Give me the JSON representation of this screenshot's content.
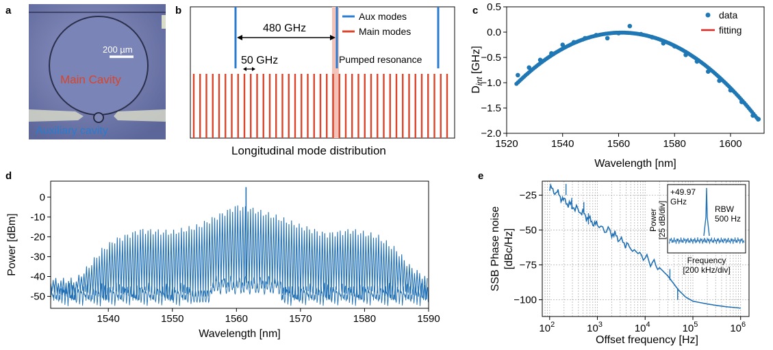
{
  "panels": {
    "a": {
      "label": "a",
      "scale_bar": "200 µm",
      "main_cavity": "Main Cavity",
      "aux_cavity": "Auxiliary cavity"
    },
    "b": {
      "label": "b",
      "legend": [
        "Aux modes",
        "Main modes"
      ],
      "spacing_large": "480 GHz",
      "spacing_small": "50 GHz",
      "pumped": "Pumped resonance",
      "caption": "Longitudinal mode distribution",
      "colors": {
        "aux": "#2a7bd0",
        "main": "#d9442b",
        "pump": "#f4c2b6"
      }
    },
    "c": {
      "label": "c"
    },
    "d": {
      "label": "d"
    },
    "e": {
      "label": "e",
      "inset": {
        "freq_label_1": "+49.97",
        "freq_label_2": "GHz",
        "ylabel_1": "Power",
        "ylabel_2": "[25 dB/div]",
        "rbw_1": "RBW",
        "rbw_2": "500 Hz",
        "xlabel_1": "Frequency",
        "xlabel_2": "[200 kHz/div]"
      }
    }
  },
  "chart_data": [
    {
      "id": "c",
      "type": "scatter",
      "xlabel": "Wavelength [nm]",
      "ylabel": "D_int [GHz]",
      "ylabel_main": "D",
      "ylabel_sub": "int",
      "ylabel_unit": " [GHz]",
      "xlim": [
        1520,
        1612
      ],
      "ylim": [
        -2.0,
        0.5
      ],
      "xticks": [
        1520,
        1540,
        1560,
        1580,
        1600
      ],
      "yticks": [
        0.5,
        0.0,
        -0.5,
        -1.0,
        -1.5,
        -2.0
      ],
      "ytick_labels": [
        "0.5",
        "0.0",
        "−0.5",
        "−1.0",
        "−1.5",
        "−2.0"
      ],
      "legend": [
        "data",
        "fitting"
      ],
      "series": [
        {
          "name": "data",
          "color": "#1f77b4",
          "x": [
            1524,
            1528,
            1532,
            1536,
            1540,
            1544,
            1548,
            1552,
            1556,
            1560,
            1564,
            1568,
            1572,
            1576,
            1580,
            1584,
            1588,
            1592,
            1596,
            1600,
            1604,
            1608,
            1610
          ],
          "y": [
            -0.85,
            -0.7,
            -0.55,
            -0.42,
            -0.25,
            -0.2,
            -0.12,
            -0.06,
            -0.12,
            -0.02,
            0.12,
            -0.04,
            -0.1,
            -0.22,
            -0.28,
            -0.45,
            -0.58,
            -0.78,
            -0.96,
            -1.15,
            -1.38,
            -1.65,
            -1.72
          ]
        },
        {
          "name": "fitting",
          "color": "#e8231b",
          "vertex_x": 1561,
          "vertex_y": -0.01,
          "curvature": -0.00072
        }
      ]
    },
    {
      "id": "d",
      "type": "line",
      "xlabel": "Wavelength [nm]",
      "ylabel": "Power [dBm]",
      "xlim": [
        1531,
        1590
      ],
      "ylim": [
        -56,
        8
      ],
      "xticks": [
        1540,
        1550,
        1560,
        1570,
        1580,
        1590
      ],
      "yticks": [
        0,
        -10,
        -20,
        -30,
        -40,
        -50
      ],
      "series": [
        {
          "name": "spectrum",
          "color": "#1f6fb4",
          "peak_x": 1561.5,
          "peak_y": 5,
          "line_spacing_nm": 0.4,
          "envelope_x": [
            1531,
            1535,
            1537,
            1539,
            1541,
            1545,
            1550,
            1554,
            1557,
            1560,
            1562,
            1566,
            1570,
            1574,
            1578,
            1582,
            1585,
            1587,
            1590
          ],
          "envelope_y": [
            -42,
            -42,
            -35,
            -27,
            -22,
            -17,
            -18,
            -15,
            -10,
            -5,
            -6,
            -10,
            -15,
            -19,
            -17,
            -20,
            -27,
            -35,
            -42
          ]
        }
      ]
    },
    {
      "id": "e",
      "type": "line",
      "xlabel": "Offset frequency [Hz]",
      "ylabel": "SSB Phase noise [dBc/Hz]",
      "ylabel_1": "SSB Phase noise",
      "ylabel_2": "[dBc/Hz]",
      "xscale": "log",
      "xlim": [
        70,
        1500000
      ],
      "ylim": [
        -112,
        -15
      ],
      "xticks": [
        100,
        1000,
        10000,
        100000,
        1000000
      ],
      "xtick_labels": [
        "10^2",
        "10^3",
        "10^4",
        "10^5",
        "10^6"
      ],
      "yticks": [
        -25,
        -50,
        -75,
        -100
      ],
      "series": [
        {
          "name": "phase noise",
          "color": "#1f6fb4",
          "x": [
            100,
            150,
            200,
            300,
            500,
            700,
            1000,
            2000,
            3000,
            5000,
            10000,
            20000,
            30000,
            50000,
            70000,
            100000,
            200000,
            300000,
            500000,
            1000000
          ],
          "y": [
            -20,
            -24,
            -29,
            -33,
            -38,
            -43,
            -47,
            -52,
            -57,
            -63,
            -70,
            -77,
            -83,
            -93,
            -98,
            -101,
            -103,
            -104,
            -105,
            -106
          ]
        }
      ]
    }
  ]
}
